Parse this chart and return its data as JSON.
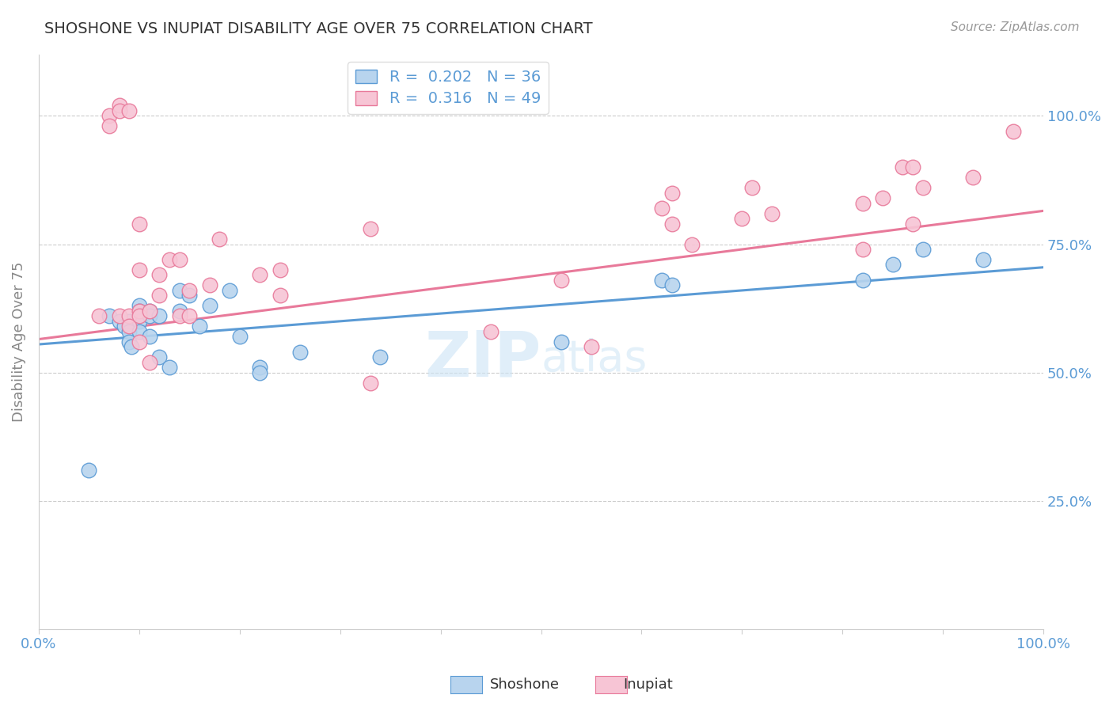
{
  "title": "SHOSHONE VS INUPIAT DISABILITY AGE OVER 75 CORRELATION CHART",
  "source": "Source: ZipAtlas.com",
  "ylabel": "Disability Age Over 75",
  "xmin": 0.0,
  "xmax": 1.0,
  "ymin": 0.0,
  "ymax": 1.12,
  "xticks": [
    0.0,
    0.1,
    0.2,
    0.3,
    0.4,
    0.5,
    0.6,
    0.7,
    0.8,
    0.9,
    1.0
  ],
  "xtick_labels": [
    "0.0%",
    "",
    "",
    "",
    "",
    "",
    "",
    "",
    "",
    "",
    "100.0%"
  ],
  "yticks": [
    0.25,
    0.5,
    0.75,
    1.0
  ],
  "ytick_labels": [
    "25.0%",
    "50.0%",
    "75.0%",
    "100.0%"
  ],
  "shoshone_color": "#b8d4ee",
  "shoshone_edge_color": "#5b9bd5",
  "inupiat_color": "#f7c5d5",
  "inupiat_edge_color": "#e8799a",
  "legend_r1": "R =  0.202",
  "legend_n1": "N = 36",
  "legend_r2": "R =  0.316",
  "legend_n2": "N = 49",
  "shoshone_x": [
    0.05,
    0.07,
    0.08,
    0.085,
    0.09,
    0.09,
    0.09,
    0.092,
    0.1,
    0.1,
    0.1,
    0.1,
    0.11,
    0.11,
    0.11,
    0.12,
    0.12,
    0.13,
    0.14,
    0.14,
    0.15,
    0.16,
    0.17,
    0.19,
    0.2,
    0.22,
    0.22,
    0.26,
    0.34,
    0.52,
    0.62,
    0.63,
    0.82,
    0.85,
    0.88,
    0.94
  ],
  "shoshone_y": [
    0.31,
    0.61,
    0.6,
    0.59,
    0.6,
    0.58,
    0.56,
    0.55,
    0.63,
    0.62,
    0.6,
    0.58,
    0.62,
    0.61,
    0.57,
    0.61,
    0.53,
    0.51,
    0.66,
    0.62,
    0.65,
    0.59,
    0.63,
    0.66,
    0.57,
    0.51,
    0.5,
    0.54,
    0.53,
    0.56,
    0.68,
    0.67,
    0.68,
    0.71,
    0.74,
    0.72
  ],
  "inupiat_x": [
    0.06,
    0.07,
    0.07,
    0.08,
    0.08,
    0.08,
    0.09,
    0.09,
    0.09,
    0.1,
    0.1,
    0.1,
    0.1,
    0.1,
    0.11,
    0.11,
    0.12,
    0.12,
    0.13,
    0.14,
    0.14,
    0.15,
    0.15,
    0.17,
    0.18,
    0.22,
    0.24,
    0.24,
    0.33,
    0.33,
    0.45,
    0.52,
    0.55,
    0.62,
    0.63,
    0.63,
    0.65,
    0.7,
    0.71,
    0.73,
    0.82,
    0.82,
    0.84,
    0.86,
    0.87,
    0.87,
    0.88,
    0.93,
    0.97
  ],
  "inupiat_y": [
    0.61,
    1.0,
    0.98,
    1.02,
    1.01,
    0.61,
    1.01,
    0.61,
    0.59,
    0.79,
    0.7,
    0.62,
    0.61,
    0.56,
    0.62,
    0.52,
    0.69,
    0.65,
    0.72,
    0.72,
    0.61,
    0.66,
    0.61,
    0.67,
    0.76,
    0.69,
    0.7,
    0.65,
    0.78,
    0.48,
    0.58,
    0.68,
    0.55,
    0.82,
    0.85,
    0.79,
    0.75,
    0.8,
    0.86,
    0.81,
    0.83,
    0.74,
    0.84,
    0.9,
    0.9,
    0.79,
    0.86,
    0.88,
    0.97
  ],
  "shoshone_trend_x": [
    0.0,
    1.0
  ],
  "shoshone_trend_y": [
    0.555,
    0.705
  ],
  "inupiat_trend_x": [
    0.0,
    1.0
  ],
  "inupiat_trend_y": [
    0.565,
    0.815
  ],
  "watermark_line1": "ZIP",
  "watermark_line2": "atlas",
  "watermark_color": "#cce0f5",
  "background_color": "#ffffff",
  "grid_color": "#cccccc",
  "title_color": "#333333",
  "source_color": "#999999",
  "axis_label_color": "#5b9bd5",
  "ylabel_color": "#888888"
}
